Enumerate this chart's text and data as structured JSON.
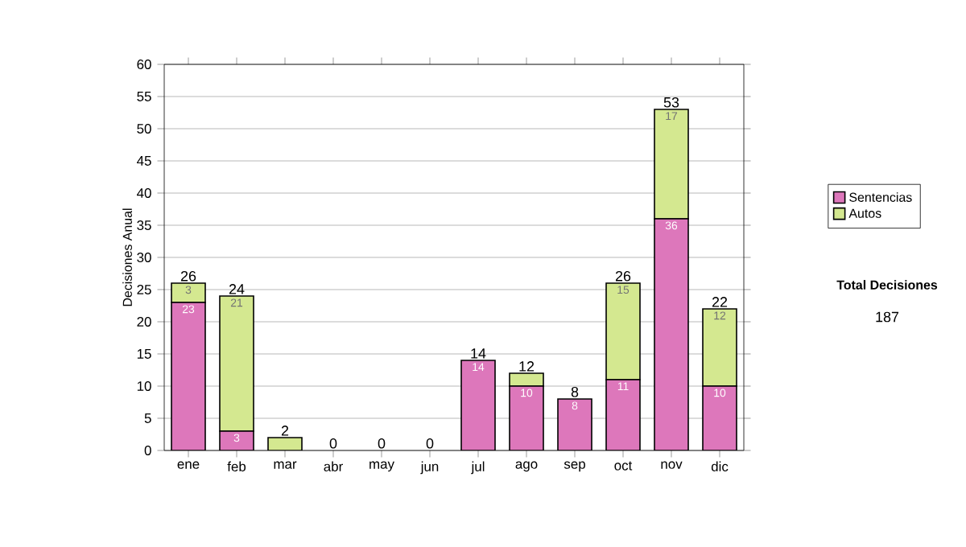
{
  "chart_data": {
    "type": "bar",
    "stacked": true,
    "ylabel": "Decisiones Anual",
    "categories": [
      "ene",
      "feb",
      "mar",
      "abr",
      "may",
      "jun",
      "jul",
      "ago",
      "sep",
      "oct",
      "nov",
      "dic"
    ],
    "series": [
      {
        "name": "Sentencias",
        "color": "#dd77bb",
        "values": [
          23,
          3,
          0,
          0,
          0,
          0,
          14,
          10,
          8,
          11,
          36,
          10
        ],
        "value_labels": [
          "23",
          "3",
          null,
          null,
          null,
          null,
          "14",
          "10",
          "8",
          "11",
          "36",
          "10"
        ]
      },
      {
        "name": "Autos",
        "color": "#d4e890",
        "values": [
          3,
          21,
          2,
          0,
          0,
          0,
          0,
          2,
          0,
          15,
          17,
          12
        ],
        "value_labels": [
          "3",
          "21",
          null,
          null,
          null,
          null,
          null,
          null,
          null,
          "15",
          "17",
          "12"
        ]
      }
    ],
    "totals": [
      "26",
      "24",
      "2",
      "0",
      "0",
      "0",
      "14",
      "12",
      "8",
      "26",
      "53",
      "22"
    ],
    "ylim": [
      0,
      60
    ],
    "yticks": [
      0,
      5,
      10,
      15,
      20,
      25,
      30,
      35,
      40,
      45,
      50,
      55,
      60
    ],
    "grid": "y",
    "legend": "right",
    "annotations": [
      "Total Decisiones",
      "187"
    ]
  }
}
